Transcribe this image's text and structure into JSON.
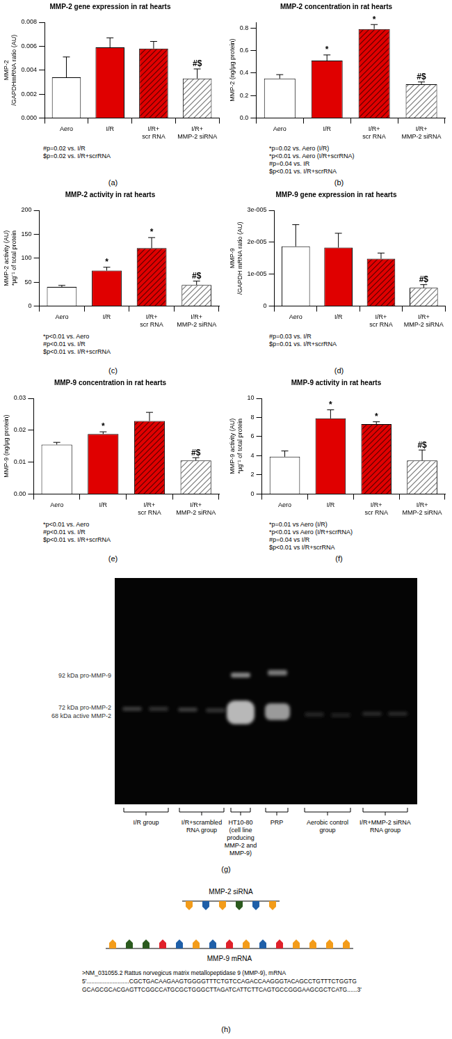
{
  "chart_data": [
    {
      "type": "bar",
      "panel": "(a)",
      "title": "MMP-2 gene expression in rat hearts",
      "y_label": [
        "MMP-2",
        "/GAPDHmRNA ratio (AU)"
      ],
      "categories": [
        [
          "Aero"
        ],
        [
          "I/R"
        ],
        [
          "I/R+",
          "scr RNA"
        ],
        [
          "I/R+",
          "MMP-2 siRNA"
        ]
      ],
      "values": [
        0.0034,
        0.0059,
        0.0058,
        0.0033
      ],
      "errors": [
        0.0017,
        0.0008,
        0.0006,
        0.0008
      ],
      "colors": [
        "#ffffff",
        "#e00000",
        "#e00000",
        "#ffffff"
      ],
      "annotations": [
        null,
        null,
        null,
        "#$"
      ],
      "ylim": [
        0,
        0.008
      ],
      "yticks": [
        {
          "value": 0,
          "label": "0.000"
        },
        {
          "value": 0.002,
          "label": "0.002"
        },
        {
          "value": 0.004,
          "label": "0.004"
        },
        {
          "value": 0.006,
          "label": "0.006"
        },
        {
          "value": 0.008,
          "label": "0.008"
        }
      ],
      "grid": false,
      "notes": [
        "#p=0.02 vs. I/R",
        "$p=0.02 vs. I/R+scrRNA"
      ]
    },
    {
      "type": "bar",
      "panel": "(b)",
      "title": "MMP-2 concentration in rat hearts",
      "y_label": [
        "MMP-2 (ng/µg protein)"
      ],
      "categories": [
        [
          "Aero"
        ],
        [
          "I/R"
        ],
        [
          "I/R+",
          "scr RNA"
        ],
        [
          "I/R+",
          "MMP-2 siRNA"
        ]
      ],
      "values": [
        0.35,
        0.51,
        0.79,
        0.3
      ],
      "errors": [
        0.035,
        0.05,
        0.04,
        0.02
      ],
      "colors": [
        "#ffffff",
        "#e00000",
        "#e00000",
        "#ffffff"
      ],
      "annotations": [
        null,
        "*",
        "*",
        "#$"
      ],
      "ylim": [
        0,
        0.85
      ],
      "yticks": [
        {
          "value": 0,
          "label": "0.0"
        },
        0.2,
        0.4,
        0.6,
        0.8
      ],
      "grid": false,
      "notes": [
        "*p=0.02 vs. Aero (I/R)",
        "*p<0.01 vs. Aero (I/R+scrRNA)",
        "#p=0.04 vs. IR",
        "$p<0.01 vs. I/R+scrRNA"
      ]
    },
    {
      "type": "bar",
      "panel": "(c)",
      "title": "MMP-2 activity in rat hearts",
      "y_label": [
        "MMP-2 activity (AU)",
        "*µg⁻¹ of total protein"
      ],
      "categories": [
        [
          "Aero"
        ],
        [
          "I/R"
        ],
        [
          "I/R+",
          "scr RNA"
        ],
        [
          "I/R+",
          "MMP-2 siRNA"
        ]
      ],
      "values": [
        40,
        74,
        121,
        44
      ],
      "errors": [
        3,
        7,
        22,
        8
      ],
      "colors": [
        "#ffffff",
        "#e00000",
        "#e00000",
        "#ffffff"
      ],
      "annotations": [
        null,
        "*",
        "*",
        "#$"
      ],
      "ylim": [
        0,
        200
      ],
      "yticks": [
        0,
        50,
        100,
        150,
        200
      ],
      "grid": false,
      "notes": [
        "*p<0.01 vs. Aero",
        "#p<0.01 vs. I/R",
        "$p<0.01 vs. I/R+scrRNA"
      ]
    },
    {
      "type": "bar",
      "panel": "(d)",
      "title": "MMP-9 gene expression in rat hearts",
      "y_label": [
        "MMP-9",
        "/GAPDH mRNA ratio (AU)"
      ],
      "categories": [
        [
          "Aero"
        ],
        [
          "I/R"
        ],
        [
          "I/R+",
          "scr RNA"
        ],
        [
          "I/R+",
          "MMP-2 siRNA"
        ]
      ],
      "values": [
        1.87e-05,
        1.83e-05,
        1.48e-05,
        5.7e-06
      ],
      "errors": [
        6.8e-06,
        4.5e-06,
        1.8e-06,
        1e-06
      ],
      "colors": [
        "#ffffff",
        "#e00000",
        "#e00000",
        "#ffffff"
      ],
      "annotations": [
        null,
        null,
        null,
        "#$"
      ],
      "ylim": [
        0,
        3e-05
      ],
      "yticks": [
        0,
        {
          "value": 1e-05,
          "label": "1e-005"
        },
        {
          "value": 2e-05,
          "label": "2e-005"
        },
        {
          "value": 3e-05,
          "label": "3e-005"
        }
      ],
      "grid": false,
      "notes": [
        "#p=0.03 vs. I/R",
        "$p=0.01 vs. I/R+scrRNA"
      ]
    },
    {
      "type": "bar",
      "panel": "(e)",
      "title": "MMP-9 concentration in rat hearts",
      "y_label": [
        "MMP-9 (ng/µg protein)"
      ],
      "categories": [
        [
          "Aero"
        ],
        [
          "I/R"
        ],
        [
          "I/R+",
          "scr RNA"
        ],
        [
          "I/R+",
          "MMP-2 siRNA"
        ]
      ],
      "values": [
        0.0155,
        0.0188,
        0.0229,
        0.0105
      ],
      "errors": [
        0.0007,
        0.0007,
        0.0027,
        0.0009
      ],
      "colors": [
        "#ffffff",
        "#e00000",
        "#e00000",
        "#ffffff"
      ],
      "annotations": [
        null,
        "*",
        null,
        "#$"
      ],
      "ylim": [
        0,
        0.03
      ],
      "yticks": [
        {
          "value": 0,
          "label": "0.00"
        },
        {
          "value": 0.01,
          "label": "0.01"
        },
        {
          "value": 0.02,
          "label": "0.02"
        },
        {
          "value": 0.03,
          "label": "0.03"
        }
      ],
      "grid": false,
      "notes": [
        "*p<0.01 vs. Aero",
        "#p<0.01 vs. I/R",
        "$p<0.01 vs. I/R+scrRNA"
      ]
    },
    {
      "type": "bar",
      "panel": "(f)",
      "title": "MMP-9 activity in rat hearts",
      "y_label": [
        "MMP-9 activity (AU)",
        "*µg⁻¹ of total protein"
      ],
      "categories": [
        [
          "Aero"
        ],
        [
          "I/R"
        ],
        [
          "I/R+",
          "scr RNA"
        ],
        [
          "I/R+",
          "MMP-2 siRNA"
        ]
      ],
      "values": [
        3.9,
        7.9,
        7.3,
        3.5
      ],
      "errors": [
        0.6,
        0.9,
        0.25,
        1.1
      ],
      "colors": [
        "#ffffff",
        "#e00000",
        "#e00000",
        "#ffffff"
      ],
      "annotations": [
        null,
        "*",
        "*",
        "#$"
      ],
      "ylim": [
        0,
        10
      ],
      "yticks": [
        0,
        2,
        4,
        6,
        8,
        10
      ],
      "grid": false,
      "notes": [
        "*p=0.01 vs Aero (I/R)",
        "*p<0.01 vs Aero (I/R+scrRNA)",
        "#p=0.04 vs I/R",
        "$p<0.01 vs I/R+scrRNA"
      ]
    }
  ],
  "gel": {
    "panel": "(g)",
    "band_labels": [
      "92 kDa pro-MMP-9",
      "72 kDa pro-MMP-2",
      "68 kDa active MMP-2"
    ],
    "lane_groups": [
      [
        "I/R group"
      ],
      [
        "I/R+scrambled",
        "RNA group"
      ],
      [
        "HT10-80",
        "(cell line",
        "producing",
        "MMP-2 and",
        "MMP-9)"
      ],
      [
        "PRP"
      ],
      [
        "Aerobic control",
        "group"
      ],
      [
        "I/R+MMP-2 siRNA",
        "RNA group"
      ]
    ]
  },
  "diagram": {
    "panel": "(h)",
    "sirna": {
      "label": "MMP-2 siRNA",
      "colors": [
        "#f39c1a",
        "#1f5fa8",
        "#f39c1a",
        "#2b5a1e",
        "#1f5fa8",
        "#f39c1a"
      ]
    },
    "mrna": {
      "label": "MMP-9 mRNA",
      "colors": [
        "#f39c1a",
        "#2b5a1e",
        "#2b5a1e",
        "#e0212a",
        "#1f5fa8",
        "#f39c1a",
        "#1f5fa8",
        "#e0212a",
        "#f39c1a",
        "#1f5fa8",
        "#e0212a",
        "#f39c1a",
        "#f39c1a",
        "#f39c1a",
        "#f39c1a"
      ]
    },
    "sequence": [
      ">NM_031055.2 Rattus norvegicus matrix metallopeptidase 9 (MMP-9), mRNA",
      "5'..........................CGCTGACAAGAAGTGGGGTTTCTGTCCAGACCAAGGGTACAGCCTGTTTCTGGTG",
      "GCAGCGCACGAGTTCGGCCATGCGCTGGGCTTAGATCATTCTTCAGTGCCGGGAAGCGCTCATG......3'"
    ]
  }
}
